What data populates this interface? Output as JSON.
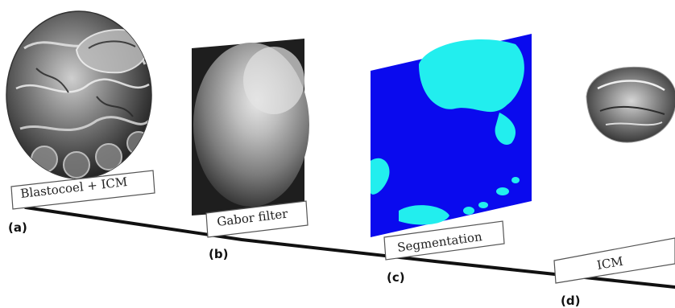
{
  "stages": [
    {
      "id": "a",
      "letter": "(a)",
      "label": "Blastocoel + ICM"
    },
    {
      "id": "b",
      "letter": "(b)",
      "label": "Gabor filter"
    },
    {
      "id": "c",
      "letter": "(c)",
      "label": "Segmentation"
    },
    {
      "id": "d",
      "letter": "(d)",
      "label": "ICM"
    }
  ],
  "colors": {
    "timeline": "#111111",
    "segmentation_background": "#0a0aee",
    "segmentation_region": "#22eeee",
    "label_border": "#555555"
  },
  "icons": [
    "embryo-image",
    "gabor-filter-image",
    "segmentation-map-image",
    "icm-crop-image"
  ]
}
